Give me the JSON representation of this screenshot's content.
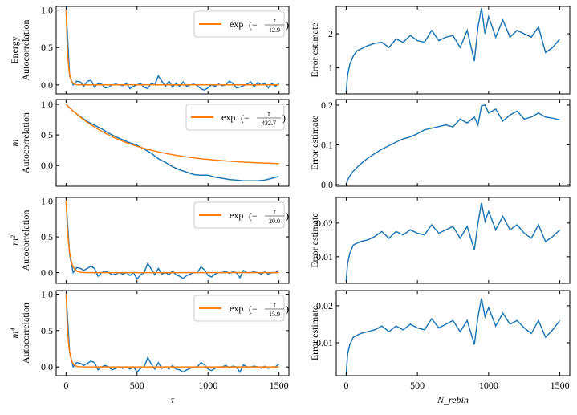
{
  "chart_data": [
    {
      "type": "line",
      "panel": "left-1",
      "ylabel_top": "Energy",
      "ylabel": "Autocorrelation",
      "xlim": [
        -70,
        1570
      ],
      "ylim": [
        -0.12,
        1.05
      ],
      "yticks": [
        0.0,
        0.5,
        1.0
      ],
      "ytick_labels": [
        "0.0",
        "0.5",
        "1.0"
      ],
      "xticks": [
        0,
        500,
        1000,
        1500
      ],
      "xtick_labels": [],
      "legend": {
        "prefix": "exp",
        "tau": "τ",
        "denominator": "12.9",
        "location": "upper-right"
      },
      "fit_tau": 12.9,
      "series": {
        "name": "autocorrelation",
        "x_step": 25,
        "y": [
          1.0,
          0.12,
          0.0,
          0.05,
          0.04,
          -0.02,
          0.05,
          0.06,
          -0.03,
          0.02,
          0.01,
          -0.04,
          -0.03,
          0.0,
          0.01,
          0.0,
          -0.01,
          0.02,
          -0.05,
          -0.02,
          0.0,
          0.02,
          -0.03,
          -0.05,
          0.02,
          0.0,
          0.12,
          0.05,
          -0.02,
          0.05,
          -0.03,
          0.02,
          -0.02,
          0.04,
          -0.02,
          0.0,
          0.01,
          -0.01,
          -0.05,
          -0.07,
          -0.04,
          0.0,
          -0.02,
          0.01,
          -0.01,
          0.0,
          0.05,
          0.02,
          -0.04,
          -0.03,
          -0.01,
          0.01,
          0.04,
          -0.03,
          0.03,
          0.0,
          0.02,
          -0.04,
          0.02,
          -0.02,
          0.02
        ]
      }
    },
    {
      "type": "line",
      "panel": "left-2",
      "ylabel_top": "m",
      "ylabel": "Autocorrelation",
      "xlim": [
        -70,
        1570
      ],
      "ylim": [
        -0.34,
        1.08
      ],
      "yticks": [
        0.0,
        0.5,
        1.0
      ],
      "ytick_labels": [
        "0.0",
        "0.5",
        "1.0"
      ],
      "xticks": [
        0,
        500,
        1000,
        1500
      ],
      "xtick_labels": [],
      "legend": {
        "prefix": "exp",
        "tau": "τ",
        "denominator": "432.7",
        "location": "upper-right"
      },
      "fit_tau": 432.7,
      "series": {
        "name": "autocorrelation",
        "x_step": 50,
        "y": [
          1.0,
          0.89,
          0.8,
          0.72,
          0.66,
          0.6,
          0.53,
          0.47,
          0.42,
          0.37,
          0.33,
          0.27,
          0.2,
          0.11,
          0.05,
          -0.02,
          -0.07,
          -0.11,
          -0.15,
          -0.16,
          -0.16,
          -0.19,
          -0.21,
          -0.23,
          -0.24,
          -0.25,
          -0.25,
          -0.25,
          -0.24,
          -0.21,
          -0.18
        ]
      }
    },
    {
      "type": "line",
      "panel": "left-3",
      "ylabel_top": "m²",
      "ylabel": "Autocorrelation",
      "xlim": [
        -70,
        1570
      ],
      "ylim": [
        -0.15,
        1.05
      ],
      "yticks": [
        0.0,
        0.5,
        1.0
      ],
      "ytick_labels": [
        "0.0",
        "0.5",
        "1.0"
      ],
      "xticks": [
        0,
        500,
        1000,
        1500
      ],
      "xtick_labels": [],
      "legend": {
        "prefix": "exp",
        "tau": "τ",
        "denominator": "20.0",
        "location": "upper-right"
      },
      "fit_tau": 20.0,
      "series": {
        "name": "autocorrelation",
        "x_step": 25,
        "y": [
          1.0,
          0.25,
          0.0,
          0.07,
          0.06,
          0.03,
          0.06,
          0.09,
          0.06,
          -0.05,
          0.0,
          0.02,
          0.0,
          -0.03,
          -0.02,
          0.0,
          -0.02,
          0.0,
          -0.04,
          0.0,
          -0.09,
          -0.03,
          0.0,
          0.13,
          0.05,
          -0.03,
          0.06,
          -0.02,
          0.0,
          -0.03,
          0.02,
          -0.03,
          -0.05,
          -0.08,
          -0.04,
          -0.02,
          0.0,
          0.0,
          0.08,
          0.04,
          -0.04,
          -0.06,
          -0.02,
          0.0,
          0.0,
          0.02,
          -0.01,
          0.01,
          0.0,
          -0.07,
          0.03,
          0.0,
          0.0,
          0.01,
          0.0,
          -0.02,
          0.01,
          -0.02,
          0.0,
          0.0,
          0.03
        ]
      }
    },
    {
      "type": "line",
      "panel": "left-4",
      "ylabel_top": "m⁴",
      "ylabel": "Autocorrelation",
      "xlabel": "τ",
      "xlim": [
        -70,
        1570
      ],
      "ylim": [
        -0.12,
        1.05
      ],
      "yticks": [
        0.0,
        0.5,
        1.0
      ],
      "ytick_labels": [
        "0.0",
        "0.5",
        "1.0"
      ],
      "xticks": [
        0,
        500,
        1000,
        1500
      ],
      "xtick_labels": [
        "0",
        "500",
        "1000",
        "1500"
      ],
      "legend": {
        "prefix": "exp",
        "tau": "τ",
        "denominator": "15.9",
        "location": "upper-right"
      },
      "fit_tau": 15.9,
      "series": {
        "name": "autocorrelation",
        "x_step": 25,
        "y": [
          1.0,
          0.2,
          0.0,
          0.06,
          0.05,
          0.02,
          0.05,
          0.08,
          0.06,
          -0.04,
          0.0,
          0.02,
          0.0,
          -0.04,
          -0.02,
          0.0,
          -0.02,
          0.0,
          -0.03,
          0.0,
          -0.07,
          -0.02,
          0.0,
          0.13,
          0.04,
          -0.03,
          0.06,
          -0.02,
          0.0,
          -0.03,
          0.02,
          -0.03,
          -0.04,
          -0.07,
          -0.04,
          -0.02,
          0.0,
          0.0,
          0.06,
          0.03,
          -0.03,
          -0.05,
          -0.02,
          0.0,
          0.0,
          0.02,
          -0.01,
          0.01,
          0.0,
          -0.07,
          0.03,
          0.0,
          0.0,
          0.01,
          0.0,
          -0.02,
          0.01,
          -0.02,
          0.0,
          0.0,
          0.04
        ]
      }
    },
    {
      "type": "line",
      "panel": "right-1",
      "ylabel": "Error estimate",
      "xlim": [
        -70,
        1570
      ],
      "ylim": [
        0.24,
        2.8
      ],
      "yticks": [
        1,
        2
      ],
      "ytick_labels": [
        "1",
        "2"
      ],
      "xticks": [
        0,
        500,
        1000,
        1500
      ],
      "xtick_labels": [],
      "series": {
        "name": "error",
        "x": [
          0,
          10,
          25,
          50,
          75,
          100,
          150,
          200,
          250,
          300,
          350,
          400,
          450,
          500,
          550,
          600,
          650,
          700,
          750,
          800,
          850,
          900,
          925,
          950,
          975,
          1000,
          1050,
          1100,
          1150,
          1200,
          1250,
          1300,
          1350,
          1400,
          1450,
          1500
        ],
        "y": [
          0.3,
          0.8,
          1.1,
          1.35,
          1.5,
          1.55,
          1.65,
          1.72,
          1.75,
          1.6,
          1.85,
          1.75,
          1.95,
          1.8,
          1.75,
          2.1,
          1.8,
          1.9,
          1.95,
          1.6,
          2.1,
          1.2,
          2.2,
          2.75,
          2.0,
          2.5,
          1.9,
          2.4,
          1.9,
          2.1,
          2.0,
          1.9,
          2.2,
          1.45,
          1.6,
          1.85
        ]
      }
    },
    {
      "type": "line",
      "panel": "right-2",
      "ylabel": "Error estimate",
      "xlim": [
        -70,
        1570
      ],
      "ylim": [
        -0.004,
        0.214
      ],
      "yticks": [
        0.0,
        0.1,
        0.2
      ],
      "ytick_labels": [
        "0.0",
        "0.1",
        "0.2"
      ],
      "xticks": [
        0,
        500,
        1000,
        1500
      ],
      "xtick_labels": [],
      "series": {
        "name": "error",
        "x": [
          0,
          10,
          25,
          50,
          100,
          150,
          200,
          250,
          300,
          350,
          400,
          450,
          500,
          550,
          600,
          650,
          700,
          750,
          800,
          850,
          900,
          925,
          950,
          975,
          1000,
          1050,
          1100,
          1150,
          1200,
          1250,
          1300,
          1350,
          1400,
          1450,
          1500
        ],
        "y": [
          0.0,
          0.012,
          0.022,
          0.034,
          0.052,
          0.066,
          0.078,
          0.089,
          0.098,
          0.107,
          0.115,
          0.12,
          0.128,
          0.138,
          0.142,
          0.146,
          0.15,
          0.145,
          0.165,
          0.155,
          0.17,
          0.15,
          0.198,
          0.2,
          0.18,
          0.19,
          0.16,
          0.175,
          0.185,
          0.165,
          0.17,
          0.18,
          0.17,
          0.167,
          0.163
        ]
      }
    },
    {
      "type": "line",
      "panel": "right-3",
      "ylabel": "Error estimate",
      "xlim": [
        -70,
        1570
      ],
      "ylim": [
        0.0021,
        0.0276
      ],
      "yticks": [
        0.01,
        0.02
      ],
      "ytick_labels": [
        "0.01",
        "0.02"
      ],
      "xticks": [
        0,
        500,
        1000,
        1500
      ],
      "xtick_labels": [],
      "series": {
        "name": "error",
        "x": [
          0,
          10,
          25,
          50,
          75,
          100,
          150,
          200,
          250,
          300,
          350,
          400,
          450,
          500,
          550,
          600,
          650,
          700,
          750,
          800,
          850,
          900,
          925,
          950,
          975,
          1000,
          1050,
          1100,
          1150,
          1200,
          1250,
          1300,
          1350,
          1400,
          1450,
          1500
        ],
        "y": [
          0.003,
          0.008,
          0.011,
          0.0135,
          0.014,
          0.0145,
          0.015,
          0.016,
          0.0175,
          0.0155,
          0.0175,
          0.0165,
          0.018,
          0.017,
          0.0165,
          0.0195,
          0.017,
          0.018,
          0.019,
          0.0155,
          0.019,
          0.012,
          0.02,
          0.026,
          0.0205,
          0.0235,
          0.018,
          0.022,
          0.018,
          0.0195,
          0.017,
          0.0155,
          0.0195,
          0.0145,
          0.016,
          0.018
        ]
      }
    },
    {
      "type": "line",
      "panel": "right-4",
      "ylabel": "Error estimate",
      "xlabel": "N_rebin",
      "xlim": [
        -70,
        1570
      ],
      "ylim": [
        0.0011,
        0.0241
      ],
      "yticks": [
        0.01,
        0.02
      ],
      "ytick_labels": [
        "0.01",
        "0.02"
      ],
      "xticks": [
        0,
        500,
        1000,
        1500
      ],
      "xtick_labels": [
        "0",
        "500",
        "1000",
        "1500"
      ],
      "series": {
        "name": "error",
        "x": [
          0,
          10,
          25,
          50,
          75,
          100,
          150,
          200,
          250,
          300,
          350,
          400,
          450,
          500,
          550,
          600,
          650,
          700,
          750,
          800,
          850,
          900,
          925,
          950,
          975,
          1000,
          1050,
          1100,
          1150,
          1200,
          1250,
          1300,
          1350,
          1400,
          1450,
          1500
        ],
        "y": [
          0.0015,
          0.007,
          0.0095,
          0.0115,
          0.012,
          0.0125,
          0.013,
          0.0135,
          0.0145,
          0.013,
          0.0145,
          0.0135,
          0.015,
          0.014,
          0.0135,
          0.0165,
          0.014,
          0.015,
          0.016,
          0.013,
          0.016,
          0.0095,
          0.017,
          0.022,
          0.017,
          0.0195,
          0.0145,
          0.018,
          0.015,
          0.016,
          0.014,
          0.0125,
          0.016,
          0.0115,
          0.0135,
          0.016
        ]
      }
    }
  ],
  "colors": {
    "data": "#1f77b4",
    "fit": "#ff7f0e"
  }
}
